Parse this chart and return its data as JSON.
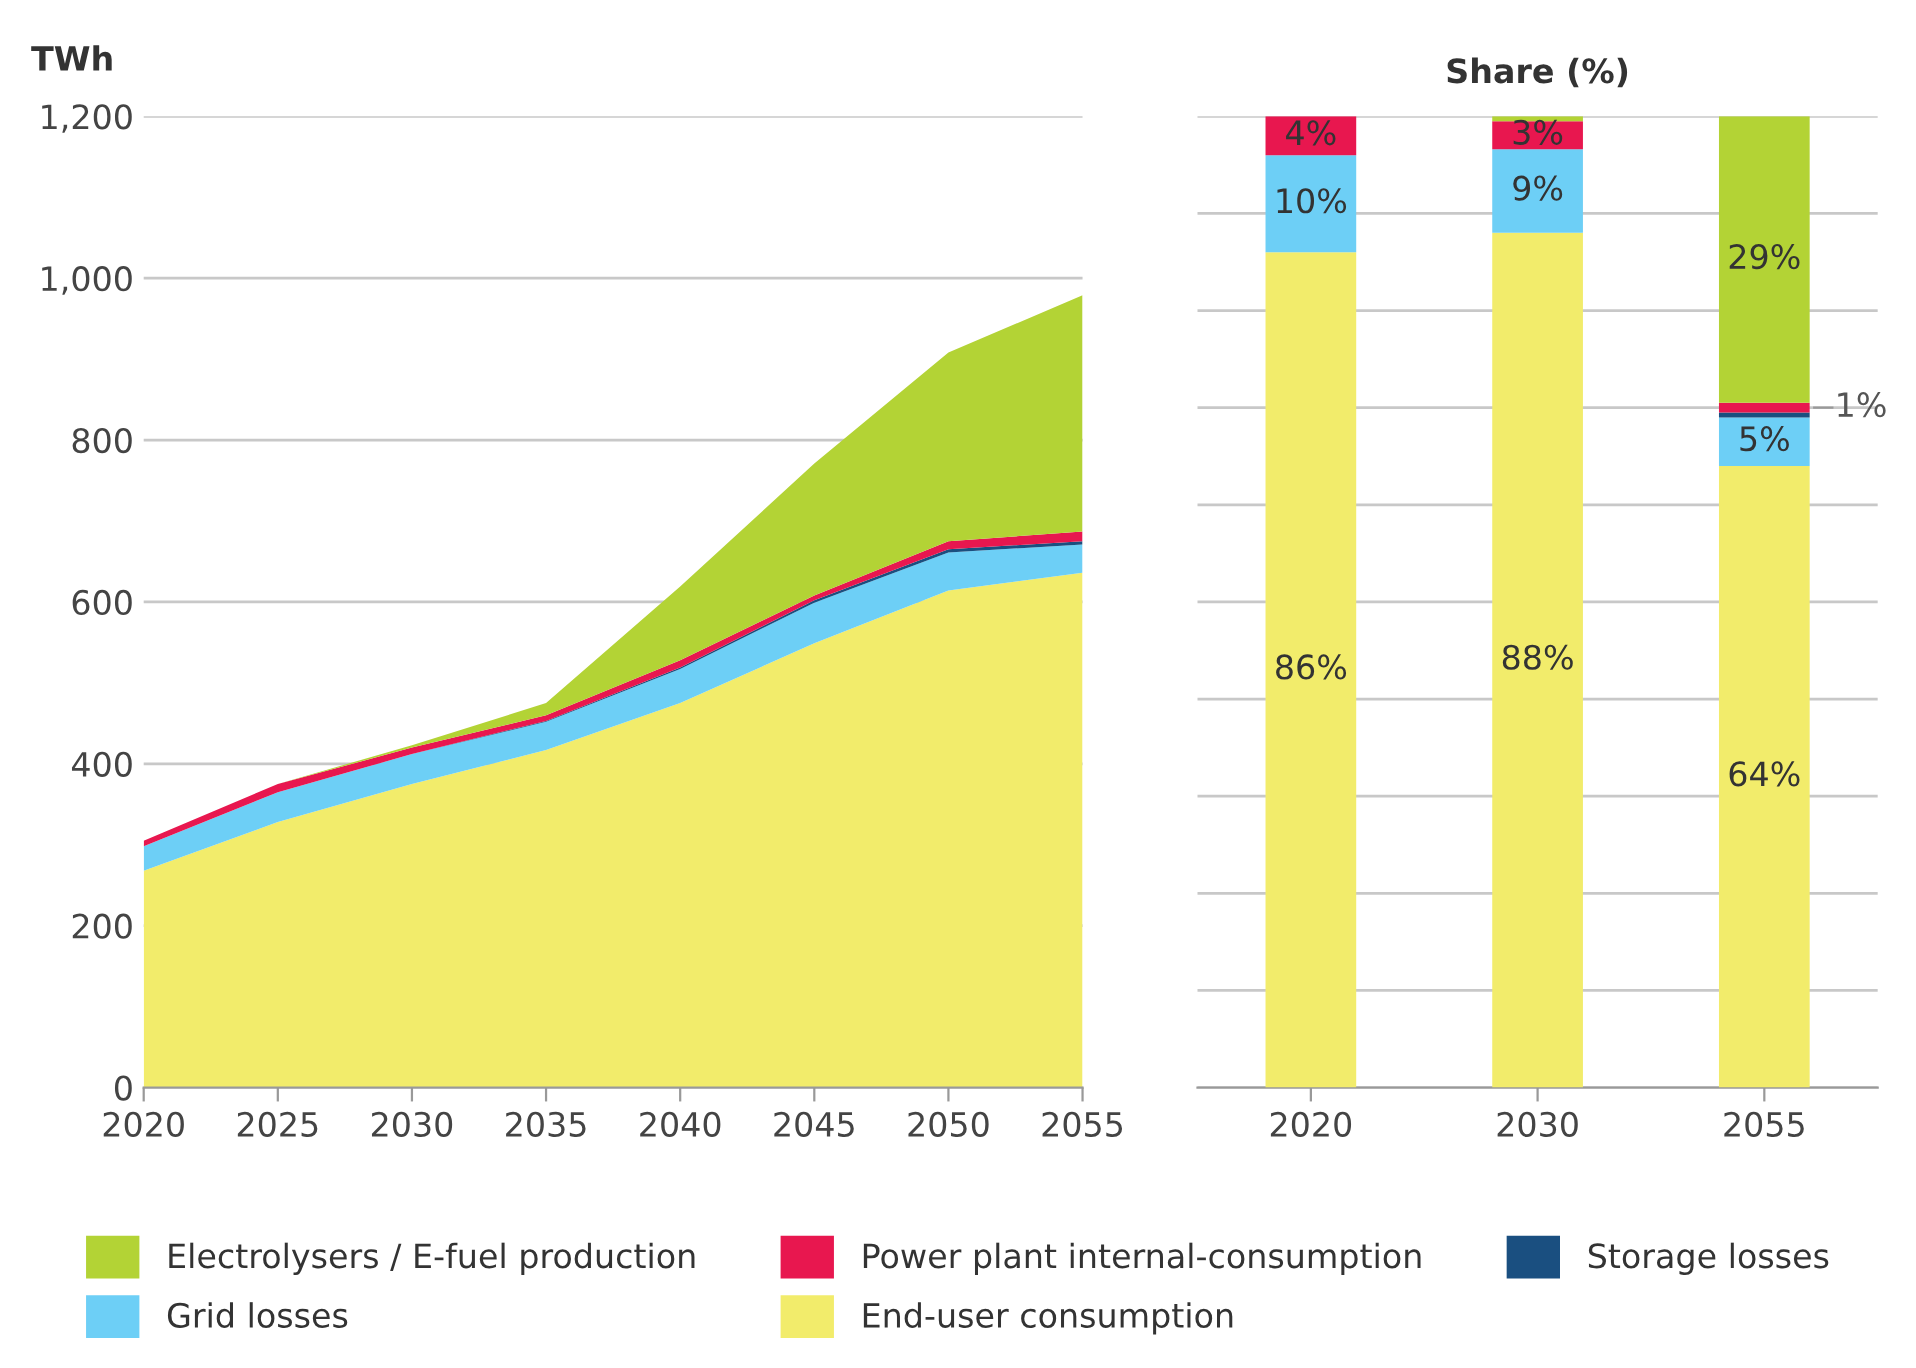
{
  "chart_data": [
    {
      "type": "area",
      "stacked": true,
      "ylabel": "TWh",
      "x": [
        2020,
        2025,
        2030,
        2035,
        2040,
        2045,
        2050,
        2055
      ],
      "xlim": [
        2020,
        2055
      ],
      "xticks": [
        2020,
        2025,
        2030,
        2035,
        2040,
        2045,
        2050,
        2055
      ],
      "ylim": [
        0,
        1200
      ],
      "yticks": [
        0,
        200,
        400,
        600,
        800,
        {
          "value": 1000,
          "label": "1,000"
        },
        {
          "value": 1200,
          "label": "1,200"
        }
      ],
      "grid": "y",
      "legend": "bottom",
      "series": [
        {
          "name": "End-user consumption",
          "color": "#f2ec6b",
          "values": [
            268,
            328,
            375,
            417,
            475,
            549,
            614,
            636
          ]
        },
        {
          "name": "Grid losses",
          "color": "#6dcff6",
          "values": [
            30,
            37,
            37,
            35,
            42,
            50,
            47,
            35
          ]
        },
        {
          "name": "Storage losses",
          "color": "#1a4f80",
          "values": [
            0,
            0,
            0,
            1,
            2,
            3,
            4,
            4
          ]
        },
        {
          "name": "Power plant internal-consumption",
          "color": "#e8174f",
          "values": [
            7,
            10,
            8,
            7,
            9,
            6,
            10,
            12
          ]
        },
        {
          "name": "Electrolysers / E-fuel production",
          "color": "#b3d335",
          "values": [
            0,
            0,
            3,
            15,
            91,
            163,
            233,
            292
          ]
        }
      ]
    },
    {
      "type": "bar",
      "stacked": true,
      "title": "Share (%)",
      "categories": [
        "2020",
        "2030",
        "2055"
      ],
      "ylim": [
        0,
        100
      ],
      "yticks": [
        {
          "value": 0,
          "label": null
        },
        {
          "value": 10,
          "label": null
        },
        {
          "value": 20,
          "label": null
        },
        {
          "value": 30,
          "label": null
        },
        {
          "value": 40,
          "label": null
        },
        {
          "value": 50,
          "label": null
        },
        {
          "value": 60,
          "label": null
        },
        {
          "value": 70,
          "label": null
        },
        {
          "value": 80,
          "label": null
        },
        {
          "value": 90,
          "label": null
        },
        {
          "value": 100,
          "label": null
        }
      ],
      "grid": "y",
      "tick_labels": "x",
      "series": [
        {
          "color": "#f2ec6b",
          "values": [
            86,
            88,
            64
          ],
          "value_labels": [
            "86%",
            "88%",
            "64%"
          ]
        },
        {
          "color": "#6dcff6",
          "values": [
            10,
            8.6,
            5
          ],
          "value_labels": [
            "10%",
            "9%",
            "5%"
          ]
        },
        {
          "color": "#1a4f80",
          "values": [
            0,
            0,
            0.5
          ],
          "value_labels": [
            null,
            null,
            null
          ]
        },
        {
          "color": "#e8174f",
          "values": [
            4,
            2.9,
            1
          ],
          "value_labels": [
            "4%",
            "3%",
            "1%"
          ]
        },
        {
          "color": "#b3d335",
          "values": [
            0,
            0.5,
            29.5
          ],
          "value_labels": [
            null,
            null,
            "29%"
          ]
        }
      ]
    }
  ]
}
